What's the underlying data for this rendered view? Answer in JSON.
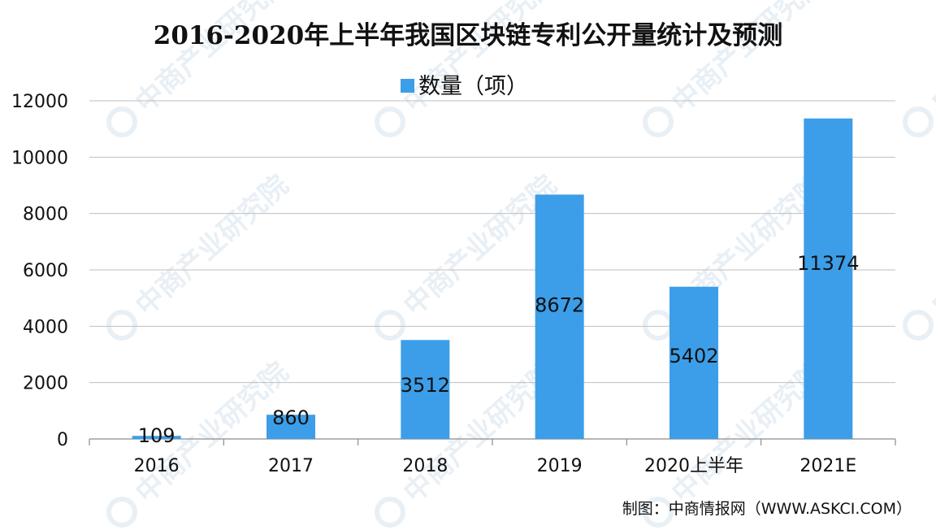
{
  "chart_data": {
    "type": "bar",
    "title": "2016-2020年上半年我国区块链专利公开量统计及预测",
    "legend": "数量（项）",
    "legend_position": "top-center",
    "categories": [
      "2016",
      "2017",
      "2018",
      "2019",
      "2020上半年",
      "2021E"
    ],
    "series": [
      {
        "name": "数量（项）",
        "values": [
          109,
          860,
          3512,
          8672,
          5402,
          11374
        ]
      }
    ],
    "data_labels": [
      "109",
      "860",
      "3512",
      "8672",
      "5402",
      "11374"
    ],
    "yticks": [
      "0",
      "2000",
      "4000",
      "6000",
      "8000",
      "10000",
      "12000"
    ],
    "ylim": [
      0,
      12000
    ],
    "grid": true,
    "bar_color": "#3c9ee8",
    "source": "制图：中商情报网（WWW.ASKCI.COM）",
    "watermark": "中商产业研究院"
  }
}
